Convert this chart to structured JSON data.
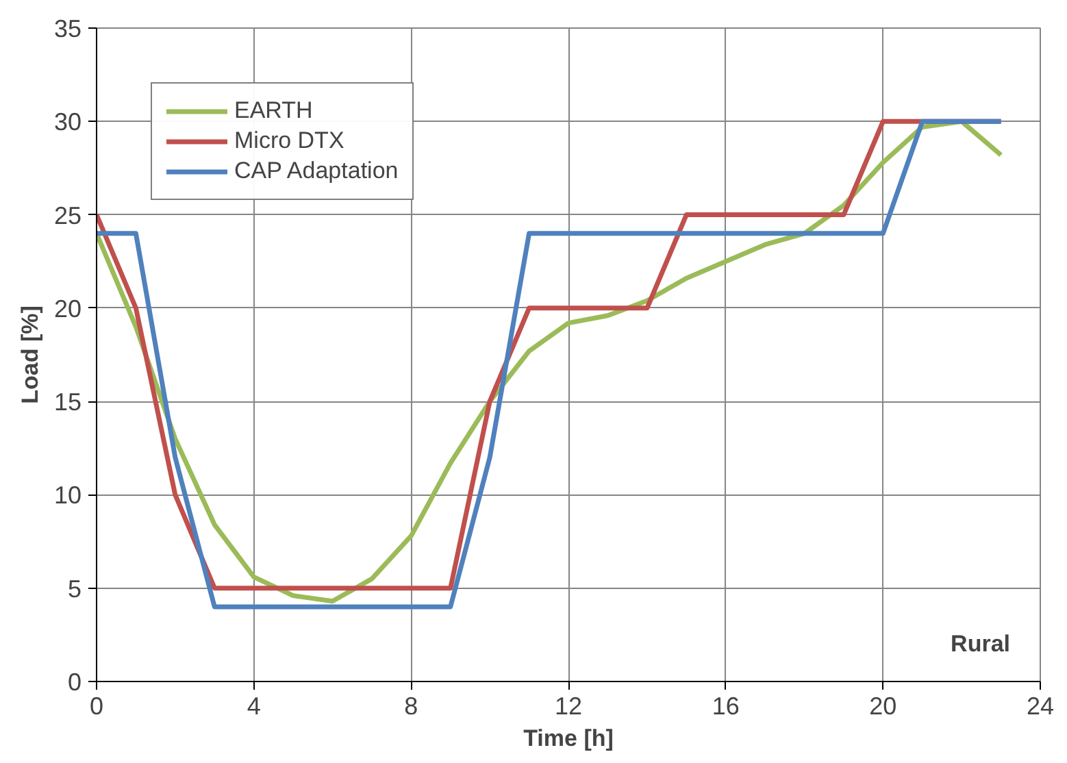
{
  "chart_data": {
    "type": "line",
    "xlabel": "Time [h]",
    "ylabel": "Load [%]",
    "x": [
      0,
      1,
      2,
      3,
      4,
      5,
      6,
      7,
      8,
      9,
      10,
      11,
      12,
      13,
      14,
      15,
      16,
      17,
      18,
      19,
      20,
      21,
      22,
      23
    ],
    "series": [
      {
        "name": "EARTH",
        "color": "#9bbb59",
        "values": [
          24,
          19,
          13,
          8.4,
          5.6,
          4.6,
          4.3,
          5.5,
          7.8,
          11.7,
          15,
          17.7,
          19.2,
          19.6,
          20.4,
          21.6,
          22.5,
          23.4,
          24,
          25.5,
          27.8,
          29.7,
          30,
          28.2
        ]
      },
      {
        "name": "Micro DTX",
        "color": "#c0504d",
        "values": [
          25,
          20,
          10,
          5,
          5,
          5,
          5,
          5,
          5,
          5,
          15,
          20,
          20,
          20,
          20,
          25,
          25,
          25,
          25,
          25,
          30,
          30,
          30,
          30
        ]
      },
      {
        "name": "CAP Adaptation",
        "color": "#4f81bd",
        "values": [
          24,
          24,
          12,
          4,
          4,
          4,
          4,
          4,
          4,
          4,
          12,
          24,
          24,
          24,
          24,
          24,
          24,
          24,
          24,
          24,
          24,
          30,
          30,
          30
        ]
      }
    ],
    "xlim": [
      0,
      24
    ],
    "xticks": [
      0,
      4,
      8,
      12,
      16,
      20,
      24
    ],
    "ylim": [
      0,
      35
    ],
    "yticks": [
      0,
      5,
      10,
      15,
      20,
      25,
      30,
      35
    ],
    "grid": true,
    "legend": "top left",
    "marker": "none",
    "line_style": "solid",
    "annotations": [
      "Rural"
    ]
  }
}
